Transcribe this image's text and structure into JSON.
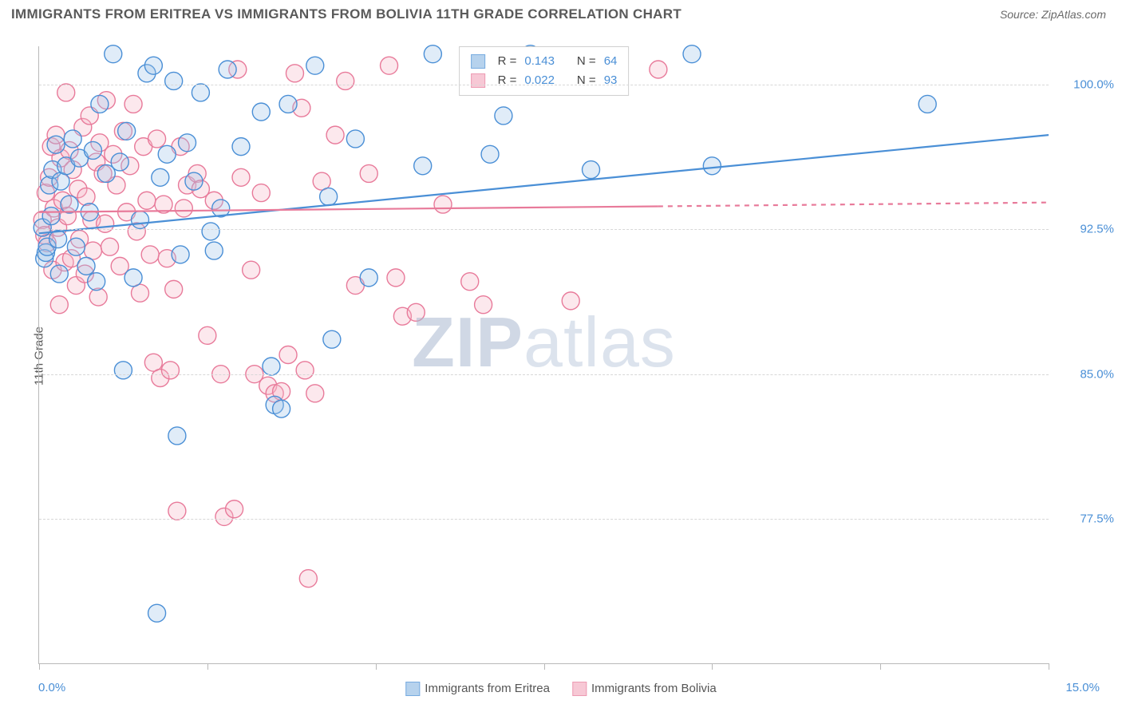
{
  "header": {
    "title": "IMMIGRANTS FROM ERITREA VS IMMIGRANTS FROM BOLIVIA 11TH GRADE CORRELATION CHART",
    "source": "Source: ZipAtlas.com"
  },
  "chart": {
    "type": "scatter",
    "y_label": "11th Grade",
    "xlim": [
      0,
      15
    ],
    "ylim": [
      70,
      102
    ],
    "x_ticks": [
      0,
      2.5,
      5,
      7.5,
      10,
      12.5,
      15
    ],
    "x_min_label": "0.0%",
    "x_max_label": "15.0%",
    "y_gridlines": [
      77.5,
      85.0,
      92.5,
      100.0
    ],
    "y_tick_labels": [
      "77.5%",
      "85.0%",
      "92.5%",
      "100.0%"
    ],
    "background_color": "#ffffff",
    "grid_color": "#d7d7d7",
    "axis_color": "#b9b9b9",
    "tick_label_color": "#4a8fd6",
    "marker_radius": 11,
    "marker_stroke_width": 1.4,
    "marker_fill_opacity": 0.32,
    "trend_line_width": 2.2,
    "watermark_text_a": "ZIP",
    "watermark_text_b": "atlas",
    "series": [
      {
        "key": "eritrea",
        "label": "Immigrants from Eritrea",
        "color_stroke": "#4a8fd6",
        "color_fill": "#9ec4e8",
        "R": "0.143",
        "N": "64",
        "trend": {
          "x1": 0,
          "y1": 92.3,
          "x2": 15,
          "y2": 97.4,
          "dash_from_x": 15
        },
        "points": [
          [
            0.05,
            92.6
          ],
          [
            0.08,
            91.0
          ],
          [
            0.1,
            91.3
          ],
          [
            0.12,
            91.6
          ],
          [
            0.15,
            94.8
          ],
          [
            0.18,
            93.2
          ],
          [
            0.2,
            95.6
          ],
          [
            0.25,
            96.9
          ],
          [
            0.28,
            92.0
          ],
          [
            0.3,
            90.2
          ],
          [
            0.32,
            95.0
          ],
          [
            0.4,
            95.8
          ],
          [
            0.45,
            93.8
          ],
          [
            0.5,
            97.2
          ],
          [
            0.55,
            91.6
          ],
          [
            0.6,
            96.2
          ],
          [
            0.7,
            90.6
          ],
          [
            0.75,
            93.4
          ],
          [
            0.8,
            96.6
          ],
          [
            0.85,
            89.8
          ],
          [
            0.9,
            99.0
          ],
          [
            1.0,
            95.4
          ],
          [
            1.1,
            101.6
          ],
          [
            1.2,
            96.0
          ],
          [
            1.25,
            85.2
          ],
          [
            1.3,
            97.6
          ],
          [
            1.4,
            90.0
          ],
          [
            1.5,
            93.0
          ],
          [
            1.6,
            100.6
          ],
          [
            1.7,
            101.0
          ],
          [
            1.75,
            72.6
          ],
          [
            1.8,
            95.2
          ],
          [
            1.9,
            96.4
          ],
          [
            2.0,
            100.2
          ],
          [
            2.05,
            81.8
          ],
          [
            2.1,
            91.2
          ],
          [
            2.2,
            97.0
          ],
          [
            2.3,
            95.0
          ],
          [
            2.4,
            99.6
          ],
          [
            2.55,
            92.4
          ],
          [
            2.6,
            91.4
          ],
          [
            2.7,
            93.6
          ],
          [
            2.8,
            100.8
          ],
          [
            3.0,
            96.8
          ],
          [
            3.3,
            98.6
          ],
          [
            3.45,
            85.4
          ],
          [
            3.5,
            83.4
          ],
          [
            3.6,
            83.2
          ],
          [
            3.7,
            99.0
          ],
          [
            4.1,
            101.0
          ],
          [
            4.3,
            94.2
          ],
          [
            4.35,
            86.8
          ],
          [
            4.7,
            97.2
          ],
          [
            4.9,
            90.0
          ],
          [
            5.7,
            95.8
          ],
          [
            5.85,
            101.6
          ],
          [
            6.7,
            96.4
          ],
          [
            6.9,
            98.4
          ],
          [
            7.1,
            101.4
          ],
          [
            7.3,
            101.6
          ],
          [
            8.2,
            95.6
          ],
          [
            9.7,
            101.6
          ],
          [
            10.0,
            95.8
          ],
          [
            13.2,
            99.0
          ]
        ]
      },
      {
        "key": "bolivia",
        "label": "Immigrants from Bolivia",
        "color_stroke": "#e87a9a",
        "color_fill": "#f5b6c8",
        "R": "0.022",
        "N": "93",
        "trend": {
          "x1": 0,
          "y1": 93.4,
          "x2": 9.2,
          "y2": 93.7,
          "dash_from_x": 9.2,
          "dash_to_x": 15,
          "dash_to_y": 93.9
        },
        "points": [
          [
            0.05,
            93.0
          ],
          [
            0.08,
            92.2
          ],
          [
            0.1,
            94.4
          ],
          [
            0.12,
            91.8
          ],
          [
            0.15,
            95.2
          ],
          [
            0.18,
            96.8
          ],
          [
            0.2,
            90.4
          ],
          [
            0.22,
            93.6
          ],
          [
            0.25,
            97.4
          ],
          [
            0.28,
            92.6
          ],
          [
            0.3,
            88.6
          ],
          [
            0.32,
            96.2
          ],
          [
            0.35,
            94.0
          ],
          [
            0.38,
            90.8
          ],
          [
            0.4,
            99.6
          ],
          [
            0.42,
            93.2
          ],
          [
            0.45,
            96.6
          ],
          [
            0.48,
            91.0
          ],
          [
            0.5,
            95.6
          ],
          [
            0.55,
            89.6
          ],
          [
            0.58,
            94.6
          ],
          [
            0.6,
            92.0
          ],
          [
            0.65,
            97.8
          ],
          [
            0.68,
            90.2
          ],
          [
            0.7,
            94.2
          ],
          [
            0.75,
            98.4
          ],
          [
            0.78,
            93.0
          ],
          [
            0.8,
            91.4
          ],
          [
            0.85,
            96.0
          ],
          [
            0.88,
            89.0
          ],
          [
            0.9,
            97.0
          ],
          [
            0.95,
            95.4
          ],
          [
            0.98,
            92.8
          ],
          [
            1.0,
            99.2
          ],
          [
            1.05,
            91.6
          ],
          [
            1.1,
            96.4
          ],
          [
            1.15,
            94.8
          ],
          [
            1.2,
            90.6
          ],
          [
            1.25,
            97.6
          ],
          [
            1.3,
            93.4
          ],
          [
            1.35,
            95.8
          ],
          [
            1.4,
            99.0
          ],
          [
            1.45,
            92.4
          ],
          [
            1.5,
            89.2
          ],
          [
            1.55,
            96.8
          ],
          [
            1.6,
            94.0
          ],
          [
            1.65,
            91.2
          ],
          [
            1.7,
            85.6
          ],
          [
            1.75,
            97.2
          ],
          [
            1.8,
            84.8
          ],
          [
            1.85,
            93.8
          ],
          [
            1.9,
            91.0
          ],
          [
            1.95,
            85.2
          ],
          [
            2.0,
            89.4
          ],
          [
            2.05,
            77.9
          ],
          [
            2.1,
            96.8
          ],
          [
            2.15,
            93.6
          ],
          [
            2.2,
            94.8
          ],
          [
            2.35,
            95.4
          ],
          [
            2.4,
            94.6
          ],
          [
            2.5,
            87.0
          ],
          [
            2.6,
            94.0
          ],
          [
            2.7,
            85.0
          ],
          [
            2.75,
            77.6
          ],
          [
            2.9,
            78.0
          ],
          [
            2.95,
            100.8
          ],
          [
            3.0,
            95.2
          ],
          [
            3.15,
            90.4
          ],
          [
            3.2,
            85.0
          ],
          [
            3.3,
            94.4
          ],
          [
            3.4,
            84.4
          ],
          [
            3.5,
            84.0
          ],
          [
            3.6,
            84.1
          ],
          [
            3.7,
            86.0
          ],
          [
            3.8,
            100.6
          ],
          [
            3.9,
            98.8
          ],
          [
            3.95,
            85.2
          ],
          [
            4.0,
            74.4
          ],
          [
            4.1,
            84.0
          ],
          [
            4.2,
            95.0
          ],
          [
            4.4,
            97.4
          ],
          [
            4.55,
            100.2
          ],
          [
            4.7,
            89.6
          ],
          [
            4.9,
            95.4
          ],
          [
            5.2,
            101.0
          ],
          [
            5.3,
            90.0
          ],
          [
            5.4,
            88.0
          ],
          [
            5.6,
            88.2
          ],
          [
            6.0,
            93.8
          ],
          [
            6.4,
            89.8
          ],
          [
            6.6,
            88.6
          ],
          [
            7.9,
            88.8
          ],
          [
            9.2,
            100.8
          ]
        ]
      }
    ]
  },
  "stats_labels": {
    "R": "R  =",
    "N": "N  ="
  }
}
